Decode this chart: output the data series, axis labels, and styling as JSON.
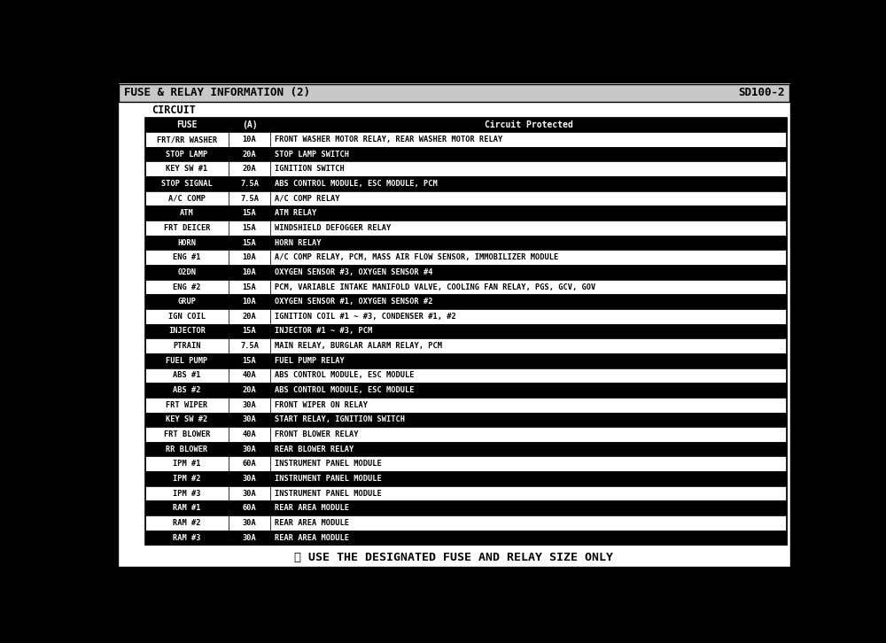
{
  "title": "FUSE & RELAY INFORMATION (2)",
  "doc_number": "SD100-2",
  "section": "CIRCUIT",
  "col_headers": [
    "FUSE",
    "(A)",
    "Circuit Protected"
  ],
  "rows": [
    [
      "FRT/RR WASHER",
      "10A",
      "FRONT WASHER MOTOR RELAY, REAR WASHER MOTOR RELAY"
    ],
    [
      "STOP LAMP",
      "20A",
      "STOP LAMP SWITCH"
    ],
    [
      "KEY SW #1",
      "20A",
      "IGNITION SWITCH"
    ],
    [
      "STOP SIGNAL",
      "7.5A",
      "ABS CONTROL MODULE, ESC MODULE, PCM"
    ],
    [
      "A/C COMP",
      "7.5A",
      "A/C COMP RELAY"
    ],
    [
      "ATM",
      "15A",
      "ATM RELAY"
    ],
    [
      "FRT DEICER",
      "15A",
      "WINDSHIELD DEFOGGER RELAY"
    ],
    [
      "HORN",
      "15A",
      "HORN RELAY"
    ],
    [
      "ENG #1",
      "10A",
      "A/C COMP RELAY, PCM, MASS AIR FLOW SENSOR, IMMOBILIZER MODULE"
    ],
    [
      "O2DN",
      "10A",
      "OXYGEN SENSOR #3, OXYGEN SENSOR #4"
    ],
    [
      "ENG #2",
      "15A",
      "PCM, VARIABLE INTAKE MANIFOLD VALVE, COOLING FAN RELAY, PGS, GCV, GOV"
    ],
    [
      "GRUP",
      "10A",
      "OXYGEN SENSOR #1, OXYGEN SENSOR #2"
    ],
    [
      "IGN COIL",
      "20A",
      "IGNITION COIL #1 ~ #3, CONDENSER #1, #2"
    ],
    [
      "INJECTOR",
      "15A",
      "INJECTOR #1 ~ #3, PCM"
    ],
    [
      "PTRAIN",
      "7.5A",
      "MAIN RELAY, BURGLAR ALARM RELAY, PCM"
    ],
    [
      "FUEL PUMP",
      "15A",
      "FUEL PUMP RELAY"
    ],
    [
      "ABS #1",
      "40A",
      "ABS CONTROL MODULE, ESC MODULE"
    ],
    [
      "ABS #2",
      "20A",
      "ABS CONTROL MODULE, ESC MODULE"
    ],
    [
      "FRT WIPER",
      "30A",
      "FRONT WIPER ON RELAY"
    ],
    [
      "KEY SW #2",
      "30A",
      "START RELAY, IGNITION SWITCH"
    ],
    [
      "FRT BLOWER",
      "40A",
      "FRONT BLOWER RELAY"
    ],
    [
      "RR BLOWER",
      "30A",
      "REAR BLOWER RELAY"
    ],
    [
      "IPM #1",
      "60A",
      "INSTRUMENT PANEL MODULE"
    ],
    [
      "IPM #2",
      "30A",
      "INSTRUMENT PANEL MODULE"
    ],
    [
      "IPM #3",
      "30A",
      "INSTRUMENT PANEL MODULE"
    ],
    [
      "RAM #1",
      "60A",
      "REAR AREA MODULE"
    ],
    [
      "RAM #2",
      "30A",
      "REAR AREA MODULE"
    ],
    [
      "RAM #3",
      "30A",
      "REAR AREA MODULE"
    ]
  ],
  "footer": "※ USE THE DESIGNATED FUSE AND RELAY SIZE ONLY",
  "fig_bg": "#000000",
  "outer_bg": "#000000",
  "inner_bg": "#ffffff",
  "title_bg": "#c8c8c8",
  "header_row_bg": "#000000",
  "header_row_fg": "#ffffff",
  "row_bg_A": "#ffffff",
  "row_fg_A": "#000000",
  "row_bg_B": "#000000",
  "row_fg_B": "#ffffff",
  "border_color": "#000000"
}
